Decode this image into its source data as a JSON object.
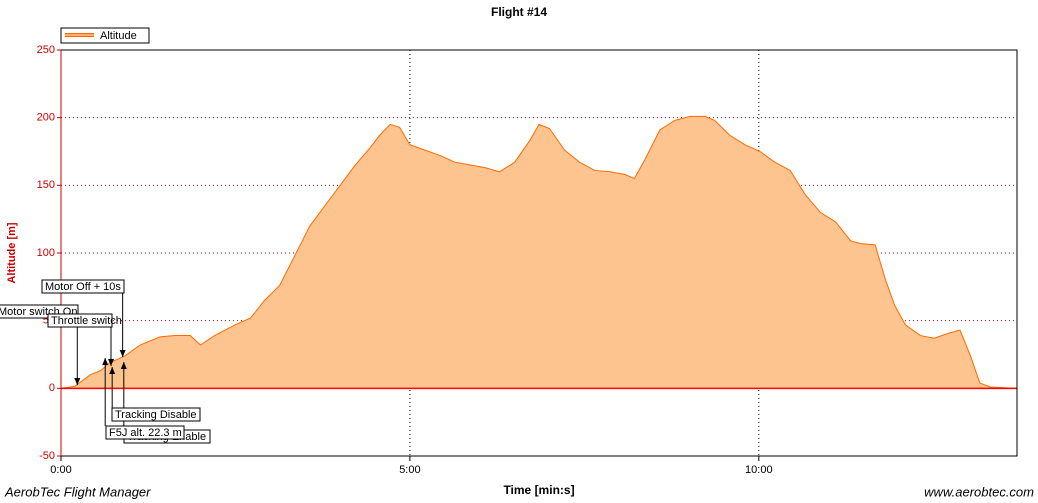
{
  "chart_data": {
    "type": "area",
    "title": "Flight #14",
    "x_label": "Time [min:s]",
    "y_label": "Altitude [m]",
    "footer_left": "AerobTec Flight Manager",
    "footer_right": "www.aerobtec.com",
    "legend": "top-left",
    "grid": true,
    "xlim": [
      0,
      822
    ],
    "ylim": [
      -50,
      250
    ],
    "xticks": [
      {
        "value": 0,
        "label": "0:00"
      },
      {
        "value": 300,
        "label": "5:00"
      },
      {
        "value": 600,
        "label": "10:00"
      }
    ],
    "yticks": [
      -50,
      0,
      50,
      100,
      150,
      200,
      250
    ],
    "series": [
      {
        "name": "Altitude",
        "color": "#ff6a00",
        "fill": "#fdc48f",
        "x": [
          0,
          12,
          25,
          34,
          42,
          55,
          68,
          85,
          98,
          111,
          120,
          132,
          150,
          163,
          175,
          188,
          201,
          214,
          227,
          240,
          253,
          266,
          274,
          283,
          291,
          300,
          313,
          326,
          339,
          352,
          365,
          377,
          390,
          403,
          411,
          420,
          433,
          446,
          459,
          472,
          485,
          493,
          502,
          515,
          528,
          541,
          554,
          562,
          575,
          588,
          601,
          614,
          627,
          640,
          653,
          666,
          679,
          687,
          700,
          709,
          717,
          726,
          739,
          751,
          764,
          773,
          782,
          790,
          799,
          822
        ],
        "values": [
          0,
          1.5,
          10,
          13,
          19,
          24,
          32,
          38,
          39,
          39,
          32,
          39,
          47,
          52,
          65,
          76,
          98,
          120,
          135,
          150,
          165,
          178,
          187,
          195,
          193,
          180,
          176,
          172,
          167,
          165,
          163,
          160,
          167,
          183,
          195,
          192,
          176,
          167,
          161,
          160,
          158,
          155,
          169,
          191,
          198,
          201,
          201,
          198,
          187,
          180,
          175,
          167,
          161,
          143,
          130,
          123,
          109,
          107,
          106,
          80,
          61,
          47,
          39,
          37,
          41,
          43,
          24,
          4,
          1,
          0
        ]
      }
    ],
    "annotations": [
      {
        "text": "Motor Off + 10s",
        "x": 53
      },
      {
        "text": "Motor switch On",
        "x": 14
      },
      {
        "text": "Throttle switch",
        "x": 43
      },
      {
        "text": "Tracking Enable",
        "x": 54
      },
      {
        "text": "Tracking Disable",
        "x": 44
      },
      {
        "text": "F5J alt. 22.3 m",
        "x": 38
      }
    ]
  }
}
